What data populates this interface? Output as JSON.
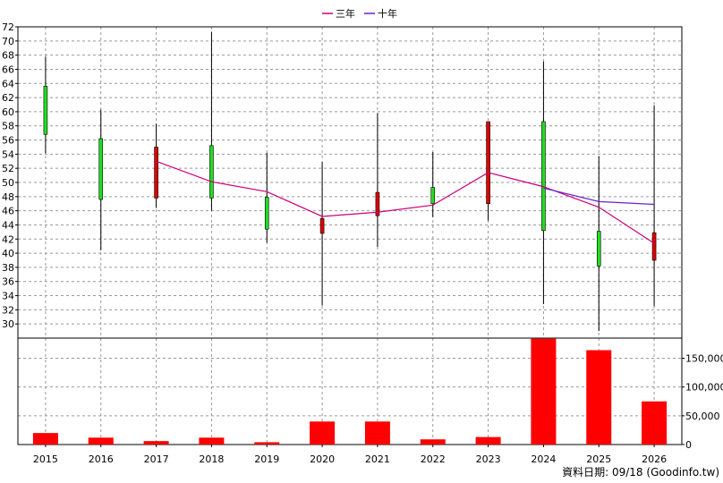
{
  "legend": {
    "items": [
      {
        "label": "三年",
        "color": "#cc0077"
      },
      {
        "label": "十年",
        "color": "#6622cc"
      }
    ]
  },
  "footer": {
    "label": "資料日期:",
    "date": "09/18",
    "source": "(Goodinfo.tw)"
  },
  "colors": {
    "up": "#22dd22",
    "down": "#dd0000",
    "volume": "#ff0000",
    "wick": "#000000",
    "grid": "#999999"
  },
  "chart_data": [
    {
      "type": "candlestick",
      "title": "",
      "x": [
        "2015",
        "2016",
        "2017",
        "2018",
        "2019",
        "2020",
        "2021",
        "2022",
        "2023",
        "2024",
        "2025",
        "2026"
      ],
      "ylim": [
        28,
        72
      ],
      "y_ticks": [
        30,
        32,
        34,
        36,
        38,
        40,
        42,
        44,
        46,
        48,
        50,
        52,
        54,
        56,
        58,
        60,
        62,
        64,
        66,
        68,
        70,
        72
      ],
      "grid": true,
      "legend_position": "top-center",
      "candles": [
        {
          "x": "2015",
          "open": 56.8,
          "close": 63.6,
          "high": 67.8,
          "low": 54.1
        },
        {
          "x": "2016",
          "open": 47.6,
          "close": 56.2,
          "high": 60.3,
          "low": 40.4
        },
        {
          "x": "2017",
          "open": 55.0,
          "close": 47.8,
          "high": 58.3,
          "low": 46.4
        },
        {
          "x": "2018",
          "open": 47.8,
          "close": 55.2,
          "high": 71.3,
          "low": 46.0
        },
        {
          "x": "2019",
          "open": 43.4,
          "close": 47.9,
          "high": 54.2,
          "low": 41.5
        },
        {
          "x": "2020",
          "open": 44.9,
          "close": 42.8,
          "high": 52.9,
          "low": 32.6
        },
        {
          "x": "2021",
          "open": 48.6,
          "close": 45.3,
          "high": 59.8,
          "low": 40.9
        },
        {
          "x": "2022",
          "open": 47.0,
          "close": 49.3,
          "high": 54.3,
          "low": 45.1
        },
        {
          "x": "2023",
          "open": 58.6,
          "close": 47.0,
          "high": 58.6,
          "low": 44.6
        },
        {
          "x": "2024",
          "open": 43.2,
          "close": 58.6,
          "high": 67.1,
          "low": 32.8
        },
        {
          "x": "2025",
          "open": 38.2,
          "close": 43.1,
          "high": 53.7,
          "low": 29.0
        },
        {
          "x": "2026",
          "open": 42.9,
          "close": 39.0,
          "high": 60.9,
          "low": 32.5
        }
      ],
      "series": [
        {
          "name": "三年",
          "color": "#cc0077",
          "points": [
            [
              "2017",
              53.0
            ],
            [
              "2018",
              50.1
            ],
            [
              "2019",
              48.7
            ],
            [
              "2020",
              45.2
            ],
            [
              "2021",
              45.8
            ],
            [
              "2022",
              46.8
            ],
            [
              "2023",
              51.4
            ],
            [
              "2024",
              49.4
            ],
            [
              "2025",
              46.5
            ],
            [
              "2026",
              41.4
            ]
          ]
        },
        {
          "name": "十年",
          "color": "#6622cc",
          "points": [
            [
              "2024",
              49.2
            ],
            [
              "2025",
              47.3
            ],
            [
              "2026",
              46.9
            ]
          ]
        }
      ]
    },
    {
      "type": "bar",
      "title": "",
      "categories": [
        "2015",
        "2016",
        "2017",
        "2018",
        "2019",
        "2020",
        "2021",
        "2022",
        "2023",
        "2024",
        "2025",
        "2026"
      ],
      "values": [
        20000,
        12000,
        6000,
        12000,
        4000,
        40000,
        40000,
        9000,
        13000,
        184000,
        164000,
        75000
      ],
      "ylim": [
        0,
        185000
      ],
      "y_ticks": [
        0,
        50000,
        100000,
        150000
      ],
      "y_tick_labels": [
        "0",
        "50,000",
        "100,000",
        "150,000"
      ],
      "grid": true
    }
  ]
}
